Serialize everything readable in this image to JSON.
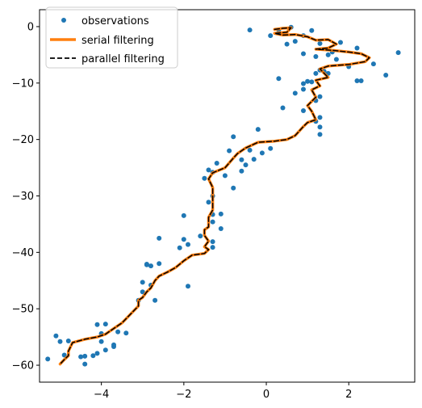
{
  "chart_data": {
    "type": "line",
    "title": "",
    "xlabel": "",
    "ylabel": "",
    "xlim": [
      -5.5,
      3.6
    ],
    "ylim": [
      -63,
      3
    ],
    "xticks": [
      -4,
      -2,
      0,
      2
    ],
    "xtick_labels": [
      "−4",
      "−2",
      "0",
      "2"
    ],
    "yticks": [
      0,
      -10,
      -20,
      -30,
      -40,
      -50,
      -60
    ],
    "ytick_labels": [
      "0",
      "−10",
      "−20",
      "−30",
      "−40",
      "−50",
      "−60"
    ],
    "grid": false,
    "legend_position": "upper-left",
    "legend": [
      "observations",
      "serial filtering",
      "parallel filtering"
    ],
    "series": [
      {
        "name": "observations",
        "style": "points",
        "color": "#1f77b4",
        "x": [
          0.6,
          0.3,
          1.1,
          0.9,
          0.1,
          -0.4,
          0.5,
          0.7,
          1.3,
          1.8,
          2.2,
          1.6,
          0.9,
          1.2,
          1.5,
          1.7,
          2.0,
          2.6,
          3.2,
          2.2,
          1.4,
          1.3,
          1.2,
          1.5,
          1.0,
          2.3,
          2.9,
          0.3,
          0.9,
          0.9,
          1.1,
          0.7,
          1.3,
          1.2,
          1.2,
          1.3,
          0.4,
          0.9,
          1.3,
          1.3,
          -0.2,
          0.1,
          -0.1,
          -0.4,
          -0.8,
          -0.3,
          -0.5,
          -0.6,
          -0.9,
          -0.6,
          -1.4,
          -1.3,
          -1.5,
          -1.2,
          -1.0,
          -1.3,
          -1.4,
          -1.3,
          -1.1,
          -1.1,
          -2.0,
          -1.6,
          -1.3,
          -1.9,
          -1.3,
          -0.8,
          -1.3,
          -2.0,
          -2.1,
          -2.6,
          -2.8,
          -2.9,
          -2.6,
          -2.9,
          -2.8,
          -3.0,
          -3.0,
          -1.9,
          -3.1,
          -2.7,
          -3.4,
          -3.9,
          -3.6,
          -4.0,
          -4.0,
          -3.7,
          -3.7,
          -3.9,
          -4.2,
          -4.4,
          -4.1,
          -4.1,
          -4.4,
          -4.5,
          -4.8,
          -5.0,
          -5.1,
          -5.3,
          -4.9
        ],
        "y": [
          -0.1,
          -0.6,
          -0.7,
          -1.6,
          -1.6,
          -0.6,
          -3.1,
          -2.6,
          -3.0,
          -2.8,
          -3.8,
          -4.5,
          -4.8,
          -5.3,
          -5.0,
          -5.8,
          -7.1,
          -6.6,
          -4.6,
          -9.6,
          -7.9,
          -7.7,
          -8.3,
          -8.3,
          -9.7,
          -9.6,
          -8.6,
          -9.2,
          -10.1,
          -11.1,
          -9.8,
          -11.8,
          -12.4,
          -13.1,
          -16.8,
          -16.1,
          -14.4,
          -14.9,
          -17.8,
          -19.1,
          -18.2,
          -21.6,
          -22.4,
          -21.9,
          -19.5,
          -23.5,
          -24.5,
          -23.6,
          -22.0,
          -25.6,
          -25.4,
          -25.8,
          -26.9,
          -24.2,
          -26.4,
          -30.0,
          -31.1,
          -34.6,
          -33.2,
          -35.8,
          -33.5,
          -37.1,
          -38.1,
          -38.6,
          -39.1,
          -28.6,
          -33.3,
          -37.7,
          -39.2,
          -37.5,
          -42.4,
          -42.2,
          -42.0,
          -42.1,
          -45.8,
          -47.0,
          -45.3,
          -46.0,
          -48.5,
          -48.5,
          -54.3,
          -52.7,
          -54.1,
          -54.4,
          -55.8,
          -56.4,
          -56.7,
          -57.3,
          -58.3,
          -59.8,
          -52.8,
          -57.9,
          -58.4,
          -58.5,
          -55.7,
          -55.8,
          -54.8,
          -58.9,
          -58.2
        ]
      },
      {
        "name": "serial filtering",
        "style": "line",
        "color": "#ff7f0e",
        "x": [
          0.2,
          0.4,
          0.6,
          0.5,
          0.2,
          0.4,
          0.7,
          1.0,
          1.2,
          1.5,
          1.7,
          1.5,
          1.2,
          1.6,
          2.0,
          2.3,
          2.5,
          2.4,
          2.0,
          1.5,
          1.3,
          1.5,
          1.2,
          1.3,
          1.1,
          1.2,
          1.0,
          1.1,
          1.2,
          1.0,
          0.9,
          0.8,
          0.7,
          0.5,
          0.2,
          -0.2,
          -0.5,
          -0.7,
          -0.8,
          -1.0,
          -1.3,
          -1.4,
          -1.3,
          -1.3,
          -1.3,
          -1.4,
          -1.4,
          -1.5,
          -1.5,
          -1.4,
          -1.5,
          -1.4,
          -1.5,
          -1.8,
          -2.0,
          -2.2,
          -2.4,
          -2.6,
          -2.7,
          -2.8,
          -2.9,
          -3.0,
          -3.1,
          -3.1,
          -3.3,
          -3.5,
          -3.7,
          -3.9,
          -4.1,
          -4.4,
          -4.7,
          -4.8,
          -4.8,
          -4.9,
          -5.0
        ],
        "y": [
          -0.5,
          -0.3,
          -0.2,
          -1.0,
          -1.2,
          -1.5,
          -1.4,
          -1.8,
          -2.4,
          -2.3,
          -3.1,
          -3.8,
          -4.0,
          -4.2,
          -4.5,
          -4.8,
          -5.5,
          -6.2,
          -6.7,
          -7.0,
          -7.5,
          -9.0,
          -9.5,
          -10.5,
          -11.2,
          -12.5,
          -14.0,
          -15.0,
          -16.5,
          -17.0,
          -17.7,
          -18.5,
          -19.3,
          -20.0,
          -20.3,
          -20.5,
          -21.5,
          -22.5,
          -23.3,
          -25.0,
          -25.9,
          -27.0,
          -28.5,
          -30.0,
          -32.5,
          -33.8,
          -35.5,
          -36.0,
          -37.0,
          -38.0,
          -39.0,
          -39.5,
          -40.2,
          -40.5,
          -41.5,
          -42.7,
          -43.5,
          -44.2,
          -45.0,
          -46.3,
          -47.0,
          -48.0,
          -48.5,
          -49.5,
          -51.0,
          -52.5,
          -53.5,
          -54.5,
          -55.0,
          -55.4,
          -56.0,
          -57.5,
          -58.3,
          -59.0,
          -59.8
        ]
      },
      {
        "name": "parallel filtering",
        "style": "dashed-line",
        "color": "#000000",
        "x": [
          0.2,
          0.4,
          0.6,
          0.5,
          0.2,
          0.4,
          0.7,
          1.0,
          1.2,
          1.5,
          1.7,
          1.5,
          1.2,
          1.6,
          2.0,
          2.3,
          2.5,
          2.4,
          2.0,
          1.5,
          1.3,
          1.5,
          1.2,
          1.3,
          1.1,
          1.2,
          1.0,
          1.1,
          1.2,
          1.0,
          0.9,
          0.8,
          0.7,
          0.5,
          0.2,
          -0.2,
          -0.5,
          -0.7,
          -0.8,
          -1.0,
          -1.3,
          -1.4,
          -1.3,
          -1.3,
          -1.3,
          -1.4,
          -1.4,
          -1.5,
          -1.5,
          -1.4,
          -1.5,
          -1.4,
          -1.5,
          -1.8,
          -2.0,
          -2.2,
          -2.4,
          -2.6,
          -2.7,
          -2.8,
          -2.9,
          -3.0,
          -3.1,
          -3.1,
          -3.3,
          -3.5,
          -3.7,
          -3.9,
          -4.1,
          -4.4,
          -4.7,
          -4.8,
          -4.8,
          -4.9,
          -5.0
        ],
        "y": [
          -0.5,
          -0.3,
          -0.2,
          -1.0,
          -1.2,
          -1.5,
          -1.4,
          -1.8,
          -2.4,
          -2.3,
          -3.1,
          -3.8,
          -4.0,
          -4.2,
          -4.5,
          -4.8,
          -5.5,
          -6.2,
          -6.7,
          -7.0,
          -7.5,
          -9.0,
          -9.5,
          -10.5,
          -11.2,
          -12.5,
          -14.0,
          -15.0,
          -16.5,
          -17.0,
          -17.7,
          -18.5,
          -19.3,
          -20.0,
          -20.3,
          -20.5,
          -21.5,
          -22.5,
          -23.3,
          -25.0,
          -25.9,
          -27.0,
          -28.5,
          -30.0,
          -32.5,
          -33.8,
          -35.5,
          -36.0,
          -37.0,
          -38.0,
          -39.0,
          -39.5,
          -40.2,
          -40.5,
          -41.5,
          -42.7,
          -43.5,
          -44.2,
          -45.0,
          -46.3,
          -47.0,
          -48.0,
          -48.5,
          -49.5,
          -51.0,
          -52.5,
          -53.5,
          -54.5,
          -55.0,
          -55.4,
          -56.0,
          -57.5,
          -58.3,
          -59.0,
          -59.8
        ]
      }
    ]
  }
}
